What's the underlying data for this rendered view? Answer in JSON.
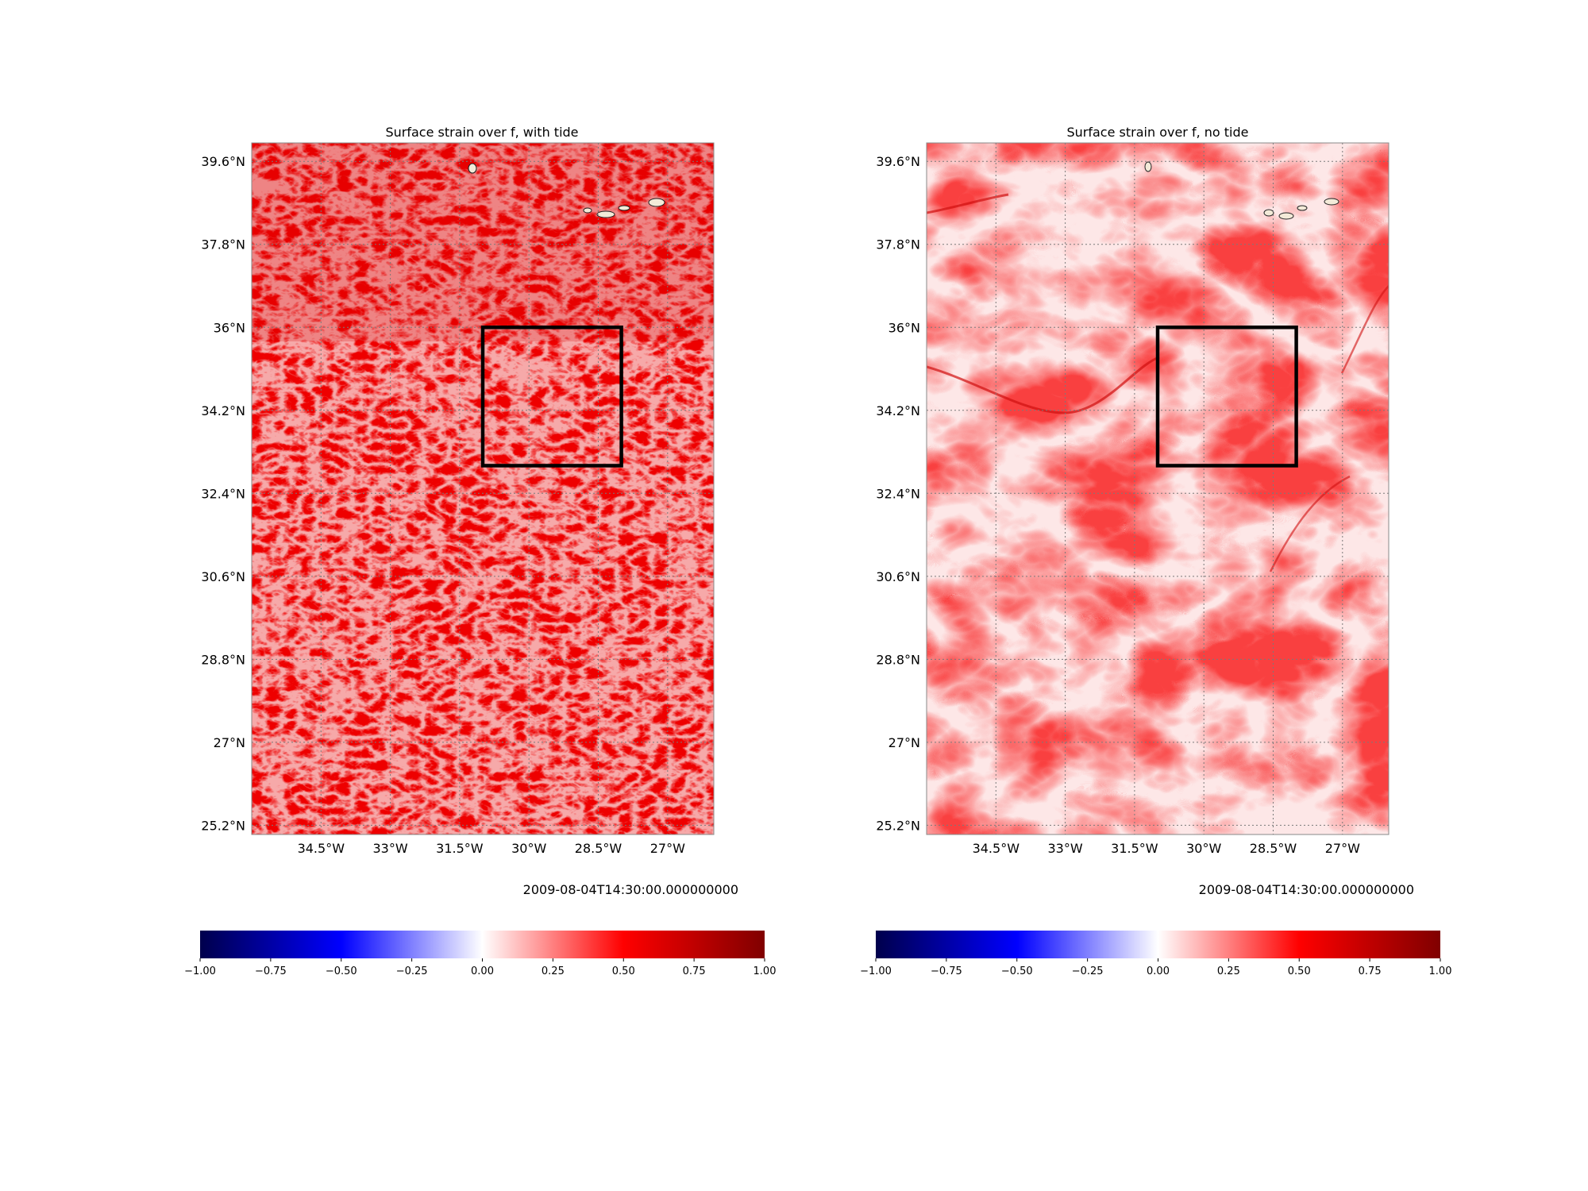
{
  "chart_data": [
    {
      "type": "heatmap",
      "title": "Surface strain over f, with tide",
      "timestamp": "2009-08-04T14:30:00.000000000",
      "xlabel": "",
      "ylabel": "",
      "x_ticks": [
        "34.5°W",
        "33°W",
        "31.5°W",
        "30°W",
        "28.5°W",
        "27°W"
      ],
      "x_tick_values": [
        -34.5,
        -33,
        -31.5,
        -30,
        -28.5,
        -27
      ],
      "y_ticks": [
        "39.6°N",
        "37.8°N",
        "36°N",
        "34.2°N",
        "32.4°N",
        "30.6°N",
        "28.8°N",
        "27°N",
        "25.2°N"
      ],
      "y_tick_values": [
        39.6,
        37.8,
        36,
        34.2,
        32.4,
        30.6,
        28.8,
        27,
        25.2
      ],
      "xlim": [
        -36.0,
        -26.0
      ],
      "ylim": [
        25.0,
        40.0
      ],
      "grid": true,
      "colormap": "seismic",
      "colorbar_range": [
        -1.0,
        1.0
      ],
      "colorbar_ticks": [
        "−1.00",
        "−0.75",
        "−0.50",
        "−0.25",
        "0.00",
        "0.25",
        "0.50",
        "0.75",
        "1.00"
      ],
      "colorbar_tick_values": [
        -1.0,
        -0.75,
        -0.5,
        -0.25,
        0.0,
        0.25,
        0.5,
        0.75,
        1.0
      ],
      "field_mean_level": 0.35,
      "box_region": {
        "lon": [
          -31.0,
          -28.0
        ],
        "lat": [
          33.0,
          36.0
        ]
      }
    },
    {
      "type": "heatmap",
      "title": "Surface strain over f, no tide",
      "timestamp": "2009-08-04T14:30:00.000000000",
      "xlabel": "",
      "ylabel": "",
      "x_ticks": [
        "34.5°W",
        "33°W",
        "31.5°W",
        "30°W",
        "28.5°W",
        "27°W"
      ],
      "x_tick_values": [
        -34.5,
        -33,
        -31.5,
        -30,
        -28.5,
        -27
      ],
      "y_ticks": [
        "39.6°N",
        "37.8°N",
        "36°N",
        "34.2°N",
        "32.4°N",
        "30.6°N",
        "28.8°N",
        "27°N",
        "25.2°N"
      ],
      "y_tick_values": [
        39.6,
        37.8,
        36,
        34.2,
        32.4,
        30.6,
        28.8,
        27,
        25.2
      ],
      "xlim": [
        -36.0,
        -26.0
      ],
      "ylim": [
        25.0,
        40.0
      ],
      "grid": true,
      "colormap": "seismic",
      "colorbar_range": [
        -1.0,
        1.0
      ],
      "colorbar_ticks": [
        "−1.00",
        "−0.75",
        "−0.50",
        "−0.25",
        "0.00",
        "0.25",
        "0.50",
        "0.75",
        "1.00"
      ],
      "colorbar_tick_values": [
        -1.0,
        -0.75,
        -0.5,
        -0.25,
        0.0,
        0.25,
        0.5,
        0.75,
        1.0
      ],
      "field_mean_level": 0.15,
      "box_region": {
        "lon": [
          -31.0,
          -28.0
        ],
        "lat": [
          33.0,
          36.0
        ]
      }
    }
  ]
}
